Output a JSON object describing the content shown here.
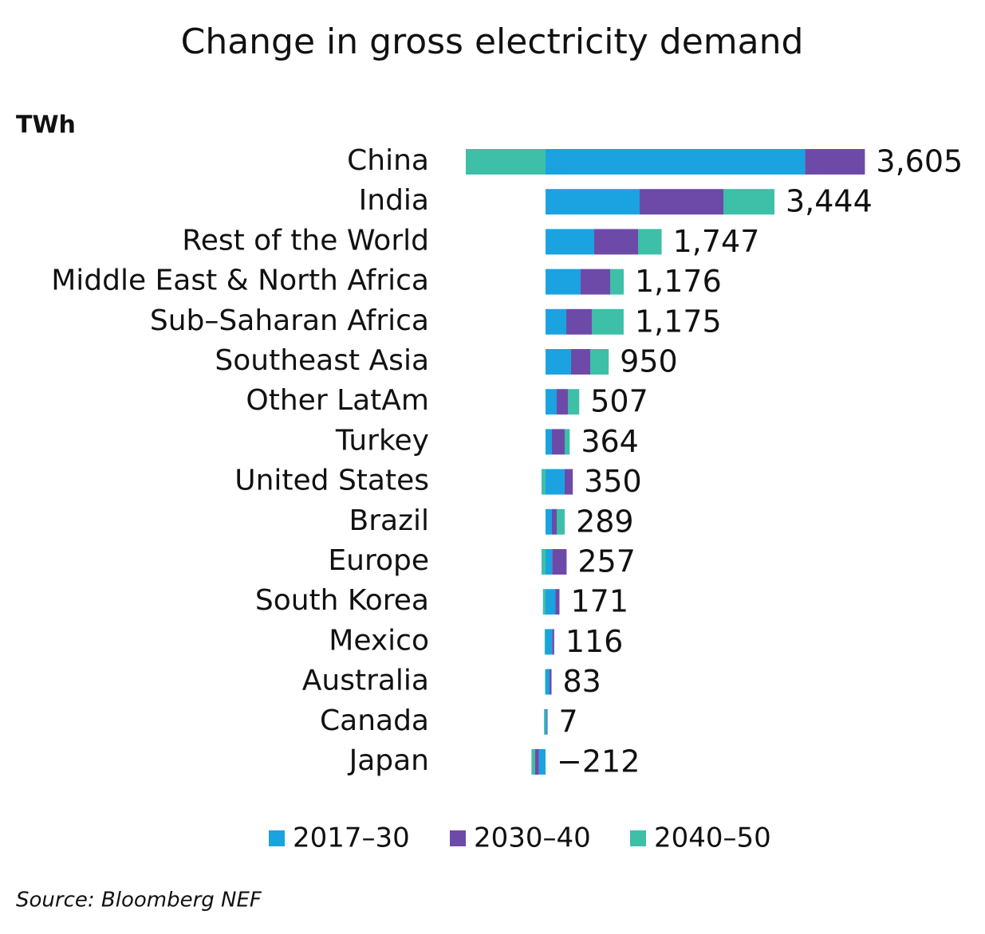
{
  "chart_data": {
    "type": "stacked-bar-horizontal",
    "title": "Change in gross electricity demand",
    "unit": "TWh",
    "source": "Source: Bloomberg NEF",
    "categories": [
      "China",
      "India",
      "Rest of the World",
      "Middle East & North Africa",
      "Sub–Saharan Africa",
      "Southeast Asia",
      "Other LatAm",
      "Turkey",
      "United States",
      "Brazil",
      "Europe",
      "South Korea",
      "Mexico",
      "Australia",
      "Canada",
      "Japan"
    ],
    "series": [
      {
        "name": "2017–30",
        "color": "#1aa3e0",
        "values": [
          3905,
          1416,
          732,
          528,
          312,
          384,
          168,
          96,
          288,
          96,
          100,
          150,
          100,
          60,
          20,
          -100
        ]
      },
      {
        "name": "2030–40",
        "color": "#6e4aa8",
        "values": [
          900,
          1260,
          660,
          444,
          384,
          288,
          168,
          192,
          122,
          72,
          217,
          60,
          30,
          30,
          10,
          -60
        ]
      },
      {
        "name": "2040–50",
        "color": "#3dbfa8",
        "values": [
          -1200,
          768,
          355,
          204,
          479,
          278,
          171,
          76,
          -60,
          121,
          -60,
          -39,
          -14,
          -7,
          -23,
          -52
        ]
      }
    ],
    "totals": [
      3605,
      3444,
      1747,
      1176,
      1175,
      950,
      507,
      364,
      350,
      289,
      257,
      171,
      116,
      83,
      7,
      -212
    ],
    "total_labels": [
      "3,605",
      "3,444",
      "1,747",
      "1,176",
      "1,175",
      "950",
      "507",
      "364",
      "350",
      "289",
      "257",
      "171",
      "116",
      "83",
      "7",
      "−212"
    ]
  }
}
